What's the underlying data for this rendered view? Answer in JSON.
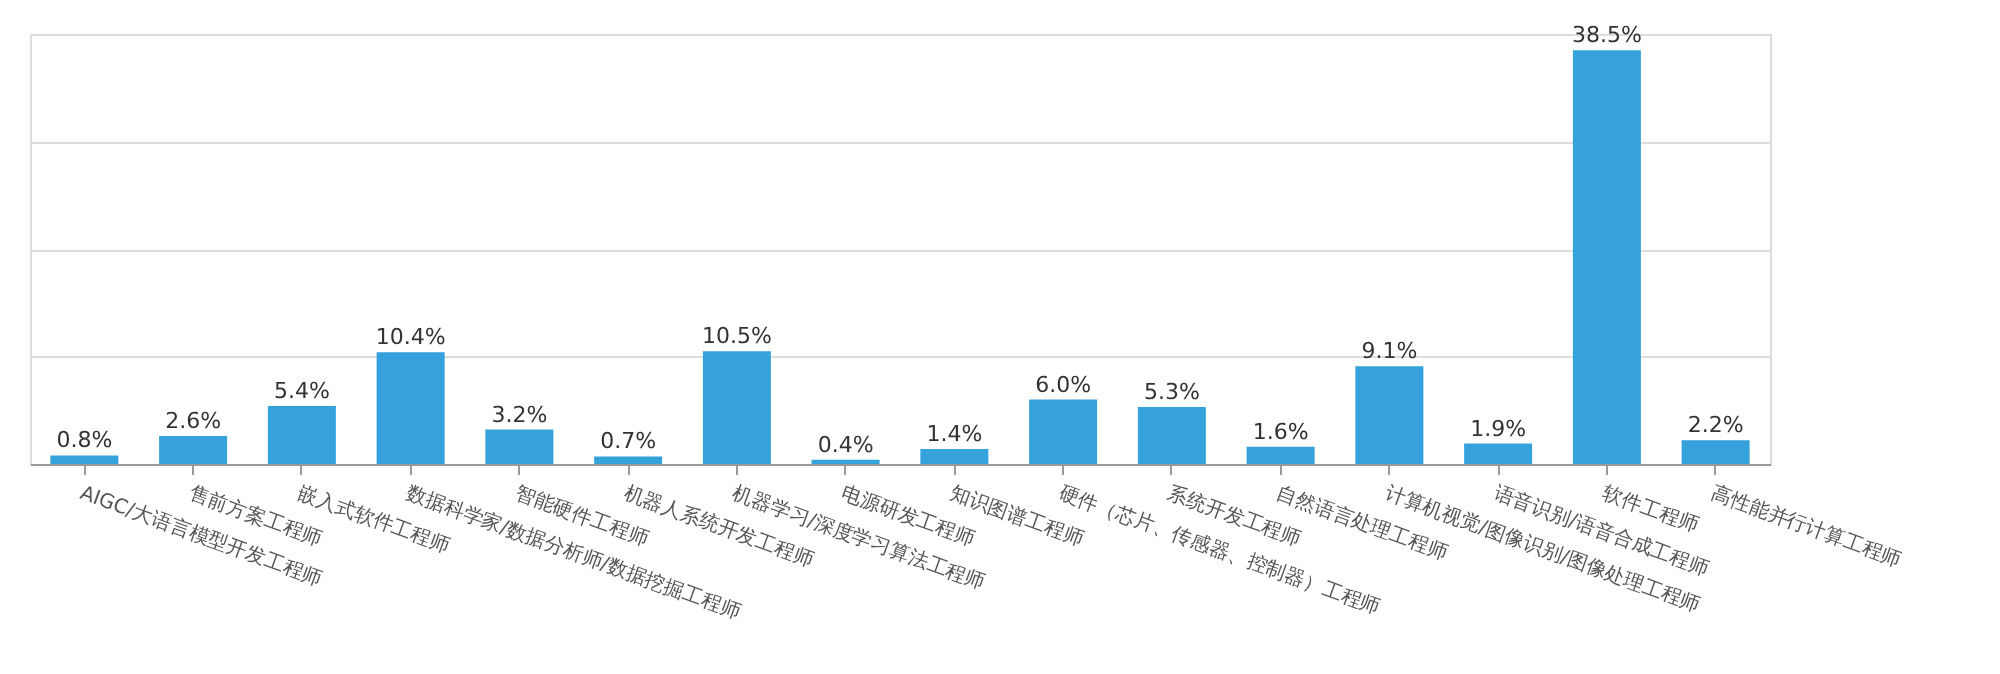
{
  "chart_data": {
    "type": "bar",
    "categories": [
      "AIGC/大语言模型开发工程师",
      "售前方案工程师",
      "嵌入式软件工程师",
      "数据科学家/数据分析师/数据挖掘工程师",
      "智能硬件工程师",
      "机器人系统开发工程师",
      "机器学习/深度学习算法工程师",
      "电源研发工程师",
      "知识图谱工程师",
      "硬件（芯片、传感器、控制器）工程师",
      "系统开发工程师",
      "自然语言处理工程师",
      "计算机视觉/图像识别/图像处理工程师",
      "语音识别/语音合成工程师",
      "软件工程师",
      "高性能并行计算工程师"
    ],
    "values": [
      0.8,
      2.6,
      5.4,
      10.4,
      3.2,
      0.7,
      10.5,
      0.4,
      1.4,
      6.0,
      5.3,
      1.6,
      9.1,
      1.9,
      38.5,
      2.2
    ],
    "value_labels": [
      "0.8%",
      "2.6%",
      "5.4%",
      "10.4%",
      "3.2%",
      "0.7%",
      "10.5%",
      "0.4%",
      "1.4%",
      "6.0%",
      "5.3%",
      "1.6%",
      "9.1%",
      "1.9%",
      "38.5%",
      "2.2%"
    ],
    "color": "#35a2dc",
    "ylim": [
      0,
      40
    ],
    "yticks": [
      {
        "value": 0,
        "label": null
      },
      {
        "value": 10,
        "label": null
      },
      {
        "value": 20,
        "label": null
      },
      {
        "value": 30,
        "label": null
      },
      {
        "value": 40,
        "label": null
      }
    ],
    "grid": "y",
    "tick_labels": "x"
  }
}
